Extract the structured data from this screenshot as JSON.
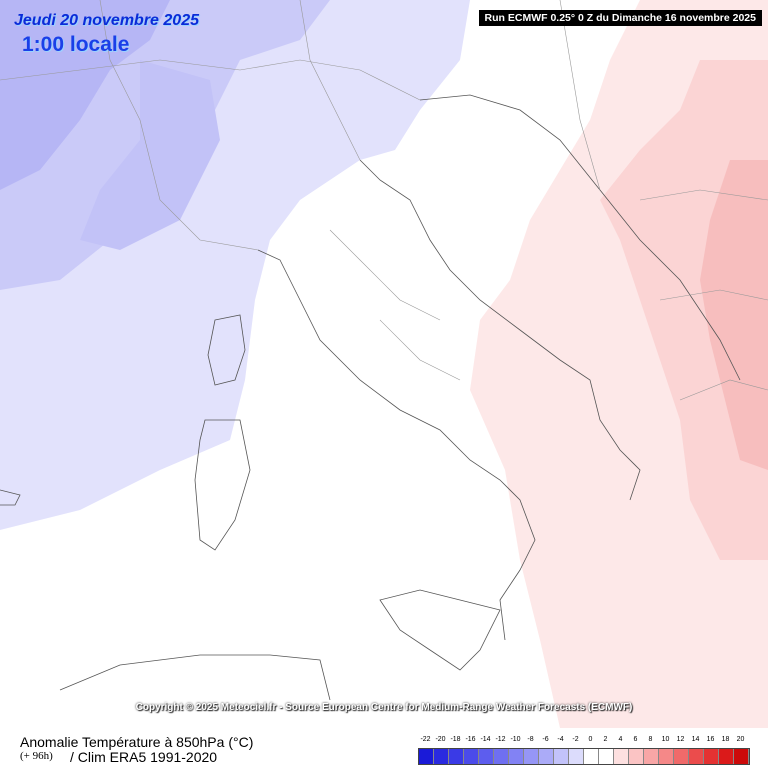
{
  "header": {
    "date": "Jeudi 20 novembre 2025",
    "time": "1:00 locale",
    "run_info": "Run ECMWF 0.25° 0 Z du Dimanche 16 novembre 2025"
  },
  "copyright": "Copyright © 2025 Meteociel.fr - Source European Centre for Medium-Range Weather Forecasts (ECMWF)",
  "footer": {
    "variable_title": "Anomalie Température à 850hPa (°C)",
    "lead_time": "(+ 96h)",
    "climatology": "/ Clim ERA5 1991-2020"
  },
  "legend": {
    "labels": [
      "-22",
      "-20",
      "-18",
      "-16",
      "-14",
      "-12",
      "-10",
      "-8",
      "-6",
      "-4",
      "-2",
      "0",
      "2",
      "4",
      "6",
      "8",
      "10",
      "12",
      "14",
      "16",
      "18",
      "20"
    ],
    "colors": [
      "#1a1ad8",
      "#2a2ae0",
      "#3a3ae6",
      "#4b4bea",
      "#5d5dee",
      "#6f6ff1",
      "#8282f4",
      "#9696f6",
      "#ababf8",
      "#c3c3fa",
      "#dcdcfc",
      "#ffffff",
      "#ffffff",
      "#fde0e0",
      "#fbc4c4",
      "#f8a6a6",
      "#f58888",
      "#f06a6a",
      "#eb4c4c",
      "#e43232",
      "#db1a1a",
      "#cc0a0a"
    ]
  },
  "map": {
    "region": "Italy",
    "anomaly_colors": {
      "cold_strong": "#a9a9f4",
      "cold_medium": "#c2c2f8",
      "cold_light": "#e0e0fc",
      "neutral": "#ffffff",
      "warm_light": "#fde6e6",
      "warm_medium": "#fad2d2",
      "warm_strong": "#f5b8b8"
    }
  }
}
